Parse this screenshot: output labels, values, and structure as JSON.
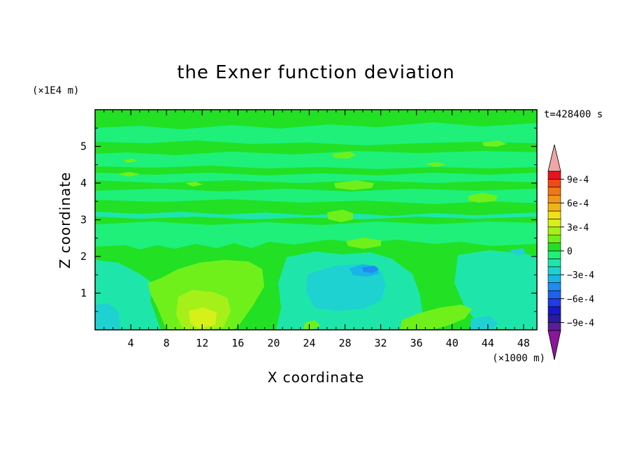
{
  "chart_data": {
    "type": "heatmap",
    "subtype": "filled contour",
    "title": "the Exner function deviation",
    "xlabel": "X coordinate",
    "ylabel": "Z coordinate",
    "x_unit_label": "(×1000 m)",
    "y_unit_label": "(×1E4 m)",
    "time_label": "t=428400 s",
    "xlim": [
      0,
      49.5
    ],
    "ylim": [
      0,
      6
    ],
    "x_ticks": [
      4,
      8,
      12,
      16,
      20,
      24,
      28,
      32,
      36,
      40,
      44,
      48
    ],
    "y_ticks": [
      1,
      2,
      3,
      4,
      5
    ],
    "colorbar": {
      "levels": [
        -0.001,
        -0.0009,
        -0.0008,
        -0.0007,
        -0.0006,
        -0.0005,
        -0.0004,
        -0.0003,
        -0.0002,
        -0.0001,
        0,
        0.0001,
        0.0002,
        0.0003,
        0.0004,
        0.0005,
        0.0006,
        0.0007,
        0.0008,
        0.0009,
        0.001
      ],
      "colors": [
        "#5a1e96",
        "#2a1aa0",
        "#1818c8",
        "#1f3ce6",
        "#2060f0",
        "#1e8cf0",
        "#18b4e8",
        "#1ed2d2",
        "#1ee6aa",
        "#1ef07a",
        "#22e024",
        "#70f01a",
        "#a6f01a",
        "#d6f01a",
        "#f0e01a",
        "#f0b41a",
        "#f0961a",
        "#f07818",
        "#f04a18",
        "#e8141e"
      ],
      "under_color": "#8a169a",
      "over_color": "#f0a6a6",
      "tick_labels": [
        "9e-4",
        "6e-4",
        "3e-4",
        "0",
        "−3e-4",
        "−6e-4",
        "−9e-4"
      ]
    },
    "field_features": [
      {
        "x": 13,
        "z": 0.8,
        "value": 0.0003,
        "description": "positive maximum"
      },
      {
        "x": 31,
        "z": 1.7,
        "value": -0.0004,
        "description": "negative minimum"
      },
      {
        "x": 2,
        "z": 0.2,
        "value": -0.0001
      },
      {
        "x": 40,
        "z": 0.4,
        "value": 0.0002
      }
    ]
  }
}
